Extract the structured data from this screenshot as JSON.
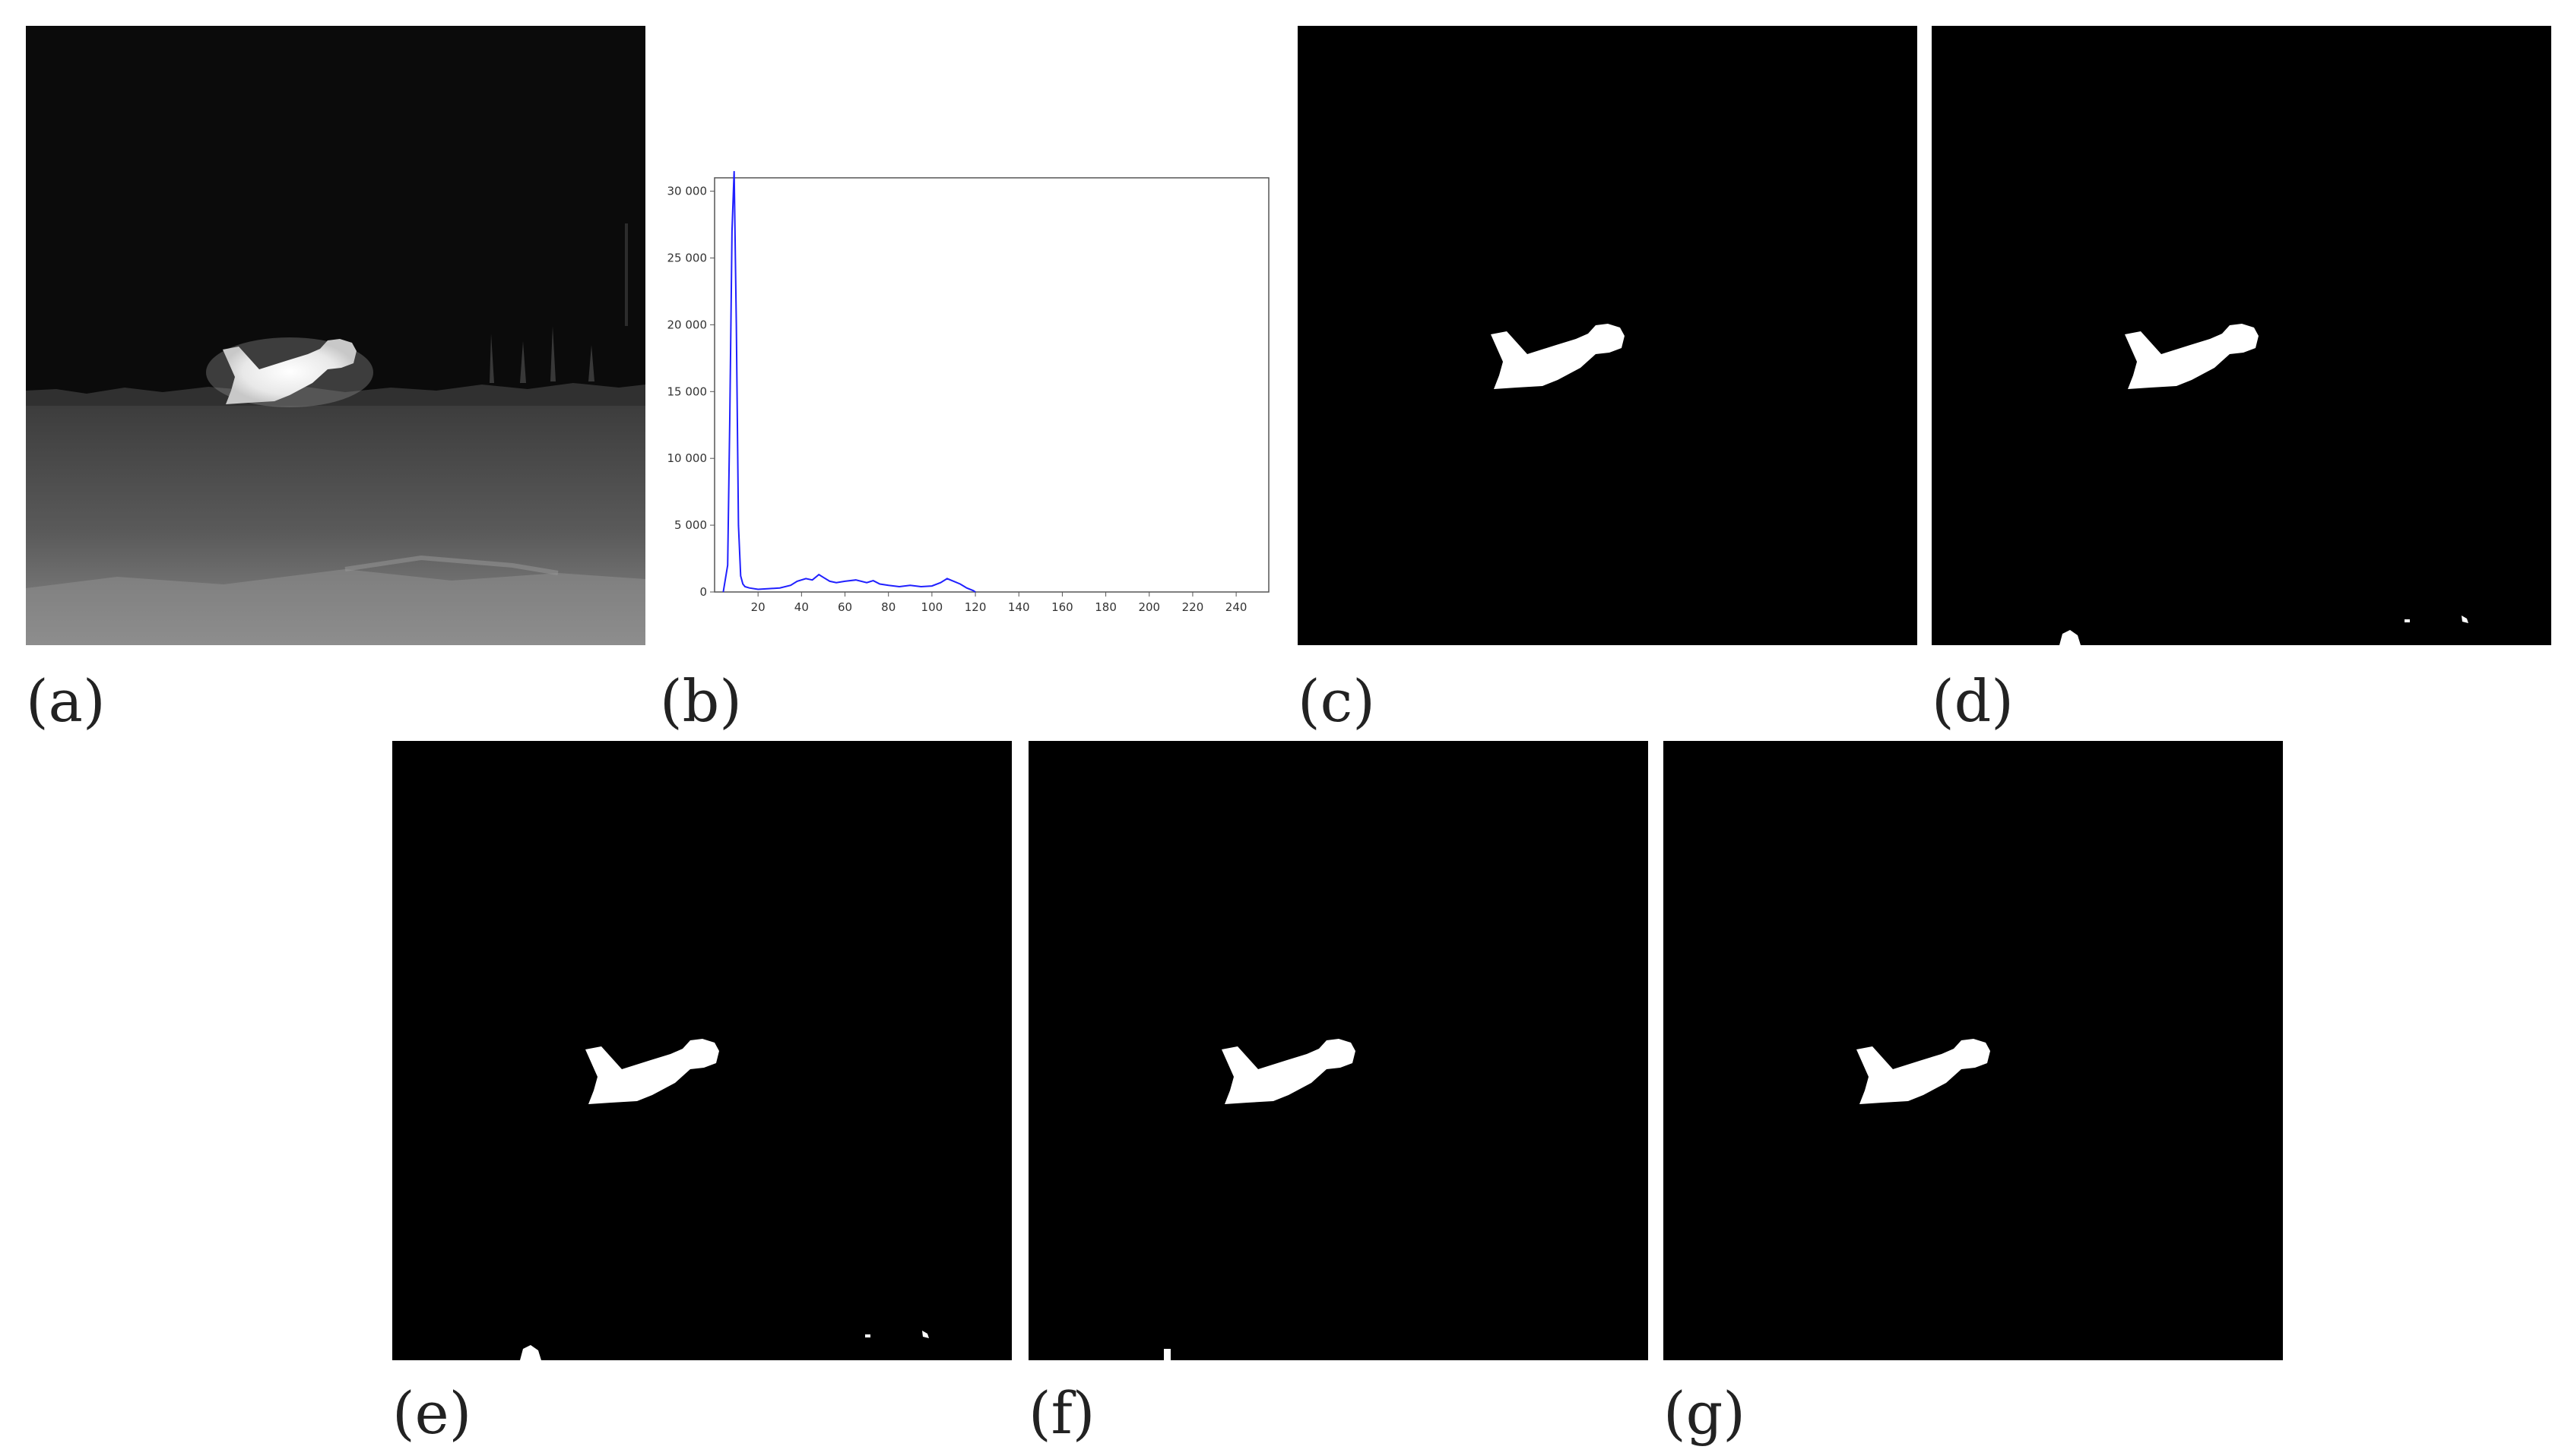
{
  "captions": {
    "a": "(a)",
    "b": "(b)",
    "c": "(c)",
    "d": "(d)",
    "e": "(e)",
    "f": "(f)",
    "g": "(g)"
  },
  "chart_data": {
    "type": "line",
    "title": "",
    "xlabel": "",
    "ylabel": "",
    "xlim": [
      0,
      255
    ],
    "ylim": [
      0,
      31000
    ],
    "x_ticks": [
      "20",
      "40",
      "60",
      "80",
      "100",
      "120",
      "140",
      "160",
      "180",
      "200",
      "220",
      "240"
    ],
    "y_ticks": [
      "0",
      "5 000",
      "10 000",
      "15 000",
      "20 000",
      "25 000",
      "30 000"
    ],
    "grid": false,
    "series": [
      {
        "color": "#2020ff",
        "x": [
          4,
          6,
          7,
          8,
          9,
          10,
          11,
          12,
          13,
          14,
          16,
          20,
          25,
          30,
          35,
          38,
          42,
          45,
          48,
          50,
          53,
          56,
          60,
          65,
          70,
          73,
          76,
          80,
          85,
          90,
          95,
          100,
          104,
          107,
          110,
          113,
          116,
          119,
          120
        ],
        "y": [
          0,
          2000,
          13000,
          27000,
          31500,
          20000,
          5000,
          1200,
          600,
          400,
          300,
          200,
          250,
          300,
          500,
          800,
          1000,
          900,
          1300,
          1100,
          800,
          700,
          800,
          900,
          700,
          850,
          600,
          500,
          400,
          500,
          400,
          450,
          700,
          1000,
          800,
          600,
          300,
          100,
          0
        ]
      }
    ]
  },
  "images": {
    "a": "thermal-airplane-scene",
    "c": "binary-segmentation-mask",
    "d": "binary-segmentation-mask-with-noise",
    "e": "binary-segmentation-mask-with-noise",
    "f": "binary-segmentation-mask-with-small-noise",
    "g": "binary-segmentation-mask"
  },
  "colors": {
    "mask_bg": "#000000",
    "mask_fg": "#ffffff",
    "histogram_line": "#2020ff"
  }
}
